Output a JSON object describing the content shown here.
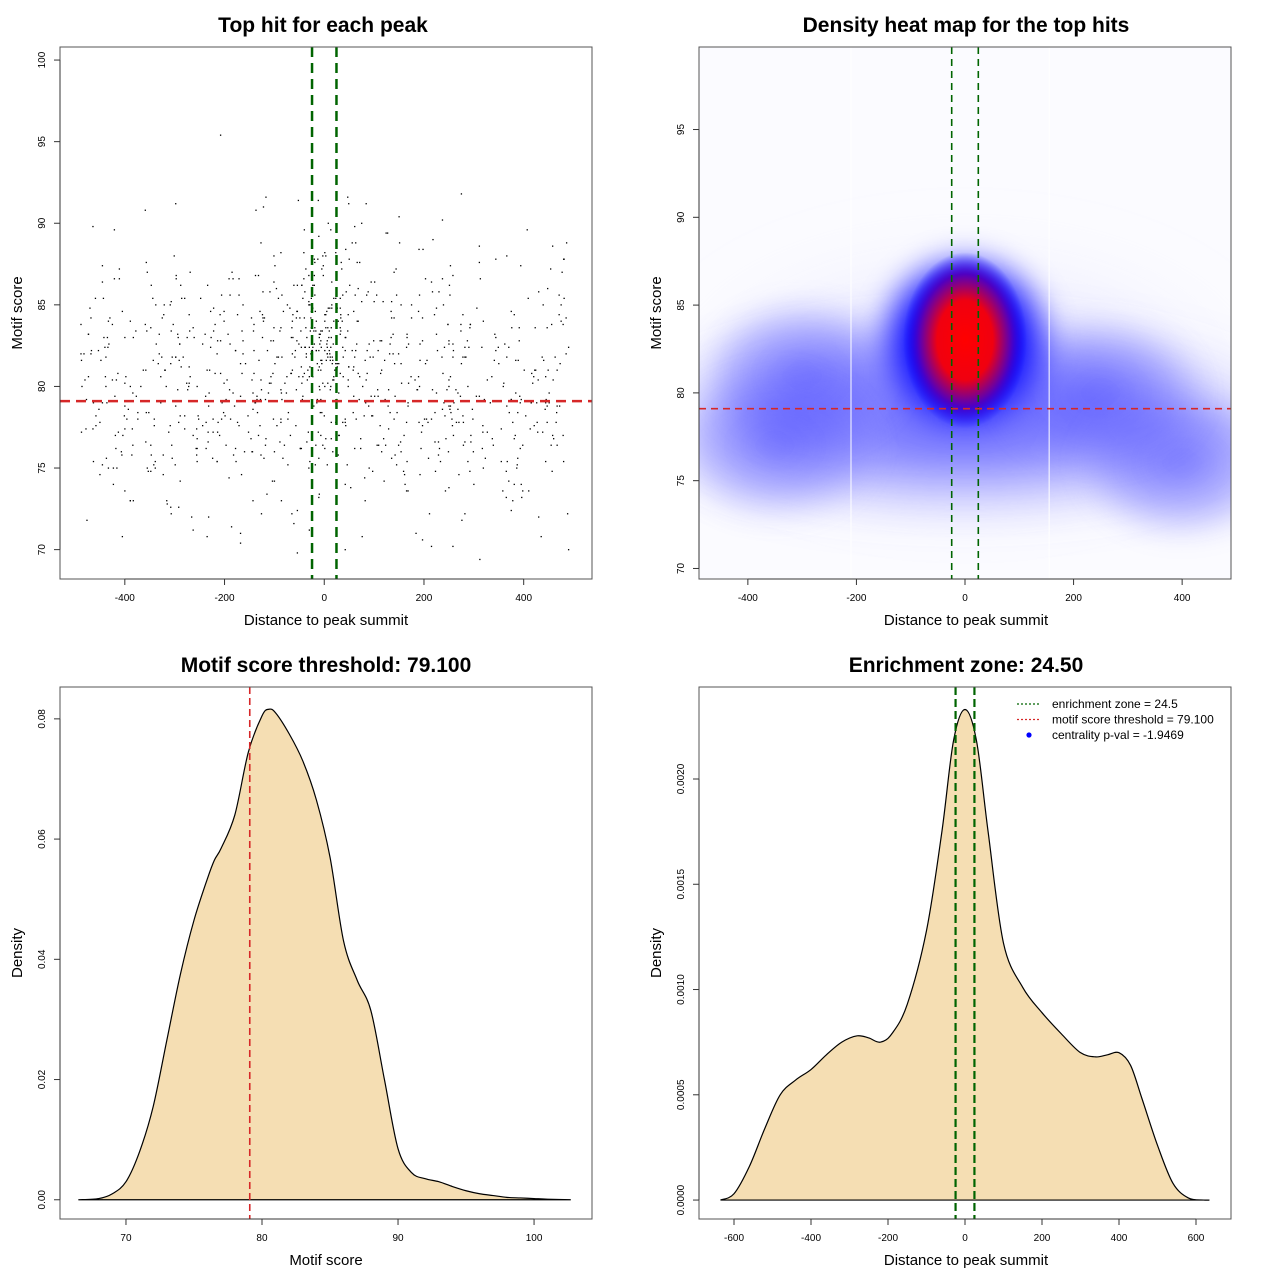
{
  "colors": {
    "threshold_red": "#d62728",
    "zone_green": "#006400",
    "density_fill": "#f5deb3",
    "heat_low": "#ffffff",
    "heat_mid": "#0000ff",
    "heat_high": "#ff0000",
    "centrality_dot": "#0000ff"
  },
  "chart_data": [
    {
      "id": "scatter",
      "type": "scatter",
      "title": "Top hit for each peak",
      "xlabel": "Distance to peak summit",
      "ylabel": "Motif score",
      "xlim": [
        -530,
        537
      ],
      "ylim": [
        68.2,
        100.8
      ],
      "xticks": [
        -400,
        -200,
        0,
        200,
        400
      ],
      "yticks": [
        70,
        75,
        80,
        85,
        90,
        95,
        100
      ],
      "n_points_approx": 1000,
      "x_range": [
        -490,
        490
      ],
      "point_distribution": "uniform in x across [-490, 490]; y roughly normal around 80.5 (sd ~4.5, range ~69-99.5); denser cluster near x=0 with higher scores",
      "hlines": [
        {
          "y": 79.1,
          "label": "motif score threshold",
          "color": "threshold_red"
        }
      ],
      "vlines": [
        {
          "x": -24.5,
          "label": "enrichment zone",
          "color": "zone_green"
        },
        {
          "x": 24.5,
          "label": "enrichment zone",
          "color": "zone_green"
        }
      ],
      "grid": false
    },
    {
      "id": "heatmap",
      "type": "heatmap",
      "title": "Density heat map for the top hits",
      "xlabel": "Distance to peak summit",
      "ylabel": "Motif score",
      "xlim": [
        -490,
        490
      ],
      "ylim": [
        69.4,
        99.7
      ],
      "xticks": [
        -400,
        -200,
        0,
        200,
        400
      ],
      "yticks": [
        70,
        75,
        80,
        85,
        90,
        95
      ],
      "colorscale": [
        "white",
        "blue",
        "red"
      ],
      "hotspots": [
        {
          "x": 0,
          "y": 83,
          "intensity": 1.0,
          "description": "red peak"
        },
        {
          "x": -300,
          "y": 81,
          "intensity": 0.35
        },
        {
          "x": 400,
          "y": 76,
          "intensity": 0.35
        },
        {
          "x": -350,
          "y": 77,
          "intensity": 0.3
        },
        {
          "x": 250,
          "y": 80,
          "intensity": 0.3
        }
      ],
      "white_vlines": [
        -210,
        155
      ],
      "hlines": [
        {
          "y": 79.1,
          "color": "threshold_red"
        }
      ],
      "vlines": [
        {
          "x": -24.5,
          "color": "zone_green"
        },
        {
          "x": 24.5,
          "color": "zone_green"
        }
      ],
      "grid": false
    },
    {
      "id": "score-density",
      "type": "area",
      "title": "Motif score threshold: 79.100",
      "xlabel": "Motif score",
      "ylabel": "Density",
      "xlim": [
        65.15,
        104.26
      ],
      "ylim": [
        -0.0032,
        0.0853
      ],
      "xticks": [
        70,
        80,
        90,
        100
      ],
      "yticks": [
        0.0,
        0.02,
        0.04,
        0.06,
        0.08
      ],
      "ytick_labels": [
        "0.00",
        "0.02",
        "0.04",
        "0.06",
        "0.08"
      ],
      "x": [
        66.5,
        68,
        69,
        70,
        71,
        72,
        73,
        74,
        75,
        76,
        76.5,
        77,
        78,
        79,
        80,
        80.5,
        81,
        82,
        83,
        84,
        85,
        86,
        87,
        88,
        89,
        90,
        91,
        92,
        93,
        94,
        95,
        96,
        97,
        98,
        99,
        100,
        101,
        102.7
      ],
      "y": [
        0.0,
        0.0002,
        0.001,
        0.003,
        0.008,
        0.0155,
        0.0265,
        0.0375,
        0.0465,
        0.0535,
        0.0565,
        0.0585,
        0.064,
        0.0745,
        0.0805,
        0.0816,
        0.081,
        0.0775,
        0.073,
        0.0665,
        0.057,
        0.043,
        0.0365,
        0.0315,
        0.02,
        0.0085,
        0.0045,
        0.0035,
        0.003,
        0.0022,
        0.0015,
        0.001,
        0.0007,
        0.0004,
        0.0003,
        0.0002,
        0.0001,
        0.0
      ],
      "vlines": [
        {
          "x": 79.1,
          "color": "threshold_red"
        }
      ],
      "grid": false
    },
    {
      "id": "distance-density",
      "type": "area",
      "title": "Enrichment zone: 24.50",
      "xlabel": "Distance to peak summit",
      "ylabel": "Density",
      "xlim": [
        -690.9,
        690.9
      ],
      "ylim": [
        -9e-05,
        0.002437
      ],
      "xticks": [
        -600,
        -400,
        -200,
        0,
        200,
        400,
        600
      ],
      "yticks": [
        0.0,
        0.0005,
        0.001,
        0.0015,
        0.002
      ],
      "ytick_labels": [
        "0.0000",
        "0.0005",
        "0.0010",
        "0.0015",
        "0.0020"
      ],
      "x": [
        -635,
        -600,
        -560,
        -520,
        -480,
        -440,
        -400,
        -360,
        -320,
        -280,
        -250,
        -220,
        -190,
        -150,
        -100,
        -60,
        -30,
        0,
        30,
        60,
        100,
        150,
        200,
        250,
        300,
        340,
        370,
        400,
        430,
        460,
        500,
        540,
        580,
        620,
        635
      ],
      "y": [
        0.0,
        3e-05,
        0.00016,
        0.00034,
        0.0005,
        0.00057,
        0.00062,
        0.00069,
        0.00075,
        0.00078,
        0.00077,
        0.00075,
        0.00079,
        0.00093,
        0.00128,
        0.00175,
        0.00218,
        0.00233,
        0.00218,
        0.00175,
        0.00122,
        0.00101,
        0.00089,
        0.00079,
        0.0007,
        0.00068,
        0.00069,
        0.0007,
        0.00064,
        0.00048,
        0.00026,
        8e-05,
        1e-05,
        0.0,
        0.0
      ],
      "vlines": [
        {
          "x": -24.5,
          "color": "zone_green"
        },
        {
          "x": 24.5,
          "color": "zone_green"
        }
      ],
      "legend": {
        "placement": "top-right",
        "entries": [
          {
            "label": "enrichment zone = 24.5",
            "style": "dotted-line",
            "color": "zone_green"
          },
          {
            "label": "motif score threshold = 79.100",
            "style": "dotted-line",
            "color": "threshold_red"
          },
          {
            "label": "centrality p-val = -1.9469",
            "style": "dot",
            "color": "centrality_dot"
          }
        ]
      },
      "grid": false
    }
  ]
}
